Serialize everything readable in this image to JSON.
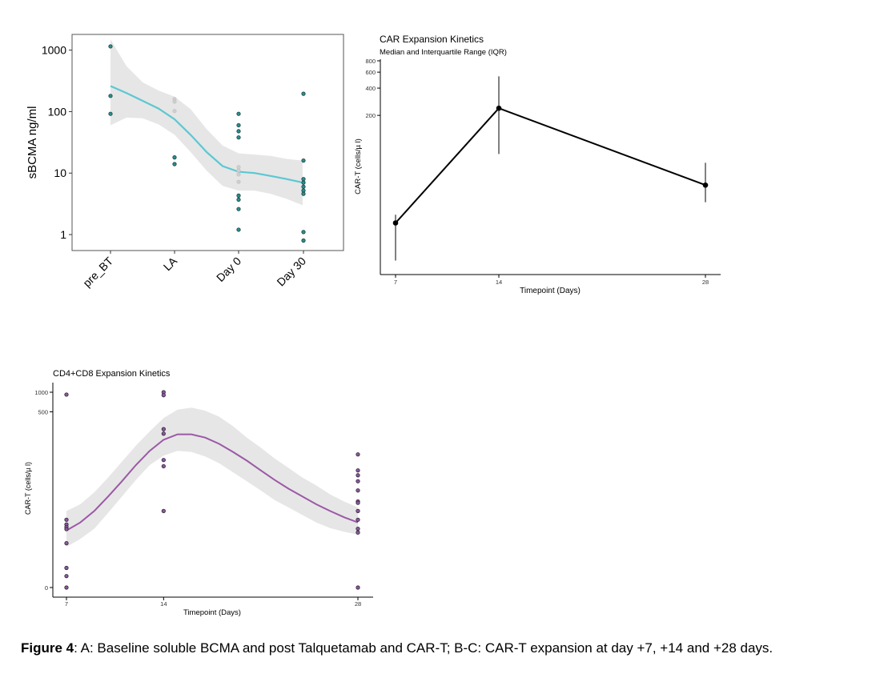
{
  "caption": {
    "label": "Figure 4",
    "text": ": A: Baseline soluble BCMA and post Talquetamab and CAR-T; B-C: CAR-T expansion at day +7, +14 and +28 days."
  },
  "colors": {
    "teal_line": "#5bc8d2",
    "purple_line": "#9b59a6",
    "ribbon": "#e6e6e6",
    "teal_point": "#2a8f8f",
    "purple_point": "#8a5a9a"
  },
  "chart_data": [
    {
      "id": "A",
      "type": "scatter",
      "title": "",
      "xlabel": "",
      "ylabel": "sBCMA ng/ml",
      "y_scale": "log",
      "ylim": [
        0.55,
        1800
      ],
      "categories": [
        "pre_BT",
        "LA",
        "Day 0",
        "Day 30"
      ],
      "y_ticks": [
        1,
        10,
        100,
        1000
      ],
      "y_tick_labels": [
        "1",
        "10",
        "100",
        "1000"
      ],
      "points_dark": [
        {
          "x": "pre_BT",
          "y": 1150
        },
        {
          "x": "pre_BT",
          "y": 180
        },
        {
          "x": "pre_BT",
          "y": 92
        },
        {
          "x": "LA",
          "y": 18
        },
        {
          "x": "LA",
          "y": 14
        },
        {
          "x": "Day 0",
          "y": 92
        },
        {
          "x": "Day 0",
          "y": 60
        },
        {
          "x": "Day 0",
          "y": 48
        },
        {
          "x": "Day 0",
          "y": 38
        },
        {
          "x": "Day 0",
          "y": 4.3
        },
        {
          "x": "Day 0",
          "y": 3.7
        },
        {
          "x": "Day 0",
          "y": 2.6
        },
        {
          "x": "Day 0",
          "y": 1.2
        },
        {
          "x": "Day 30",
          "y": 195
        },
        {
          "x": "Day 30",
          "y": 16
        },
        {
          "x": "Day 30",
          "y": 8
        },
        {
          "x": "Day 30",
          "y": 7
        },
        {
          "x": "Day 30",
          "y": 6
        },
        {
          "x": "Day 30",
          "y": 5.2
        },
        {
          "x": "Day 30",
          "y": 4.6
        },
        {
          "x": "Day 30",
          "y": 1.1
        },
        {
          "x": "Day 30",
          "y": 0.8
        }
      ],
      "points_light": [
        {
          "x": "LA",
          "y": 160
        },
        {
          "x": "LA",
          "y": 145
        },
        {
          "x": "LA",
          "y": 102
        },
        {
          "x": "Day 0",
          "y": 12.5
        },
        {
          "x": "Day 0",
          "y": 11
        },
        {
          "x": "Day 0",
          "y": 9.5
        },
        {
          "x": "Day 0",
          "y": 7.2
        }
      ],
      "fit": {
        "x": [
          0,
          0.25,
          0.5,
          0.75,
          1,
          1.25,
          1.5,
          1.75,
          2,
          2.25,
          2.5,
          2.75,
          3
        ],
        "y": [
          260,
          200,
          150,
          112,
          75,
          42,
          22,
          13,
          10.5,
          10,
          9,
          8,
          7
        ],
        "lower": [
          60,
          80,
          78,
          62,
          42,
          22,
          11,
          6.2,
          5.2,
          5.2,
          4.6,
          3.8,
          3.0
        ],
        "upper": [
          1500,
          550,
          300,
          220,
          175,
          110,
          52,
          28,
          21,
          20,
          19,
          17,
          16
        ]
      }
    },
    {
      "id": "B",
      "type": "line",
      "title": "CAR Expansion Kinetics",
      "subtitle": "Median and Interquartile Range (IQR)",
      "xlabel": "Timepoint (Days)",
      "ylabel": "CAR-T (cells/µ l)",
      "y_scale": "log",
      "ylim": [
        3.5,
        800
      ],
      "x": [
        7,
        14,
        28
      ],
      "y_ticks": [
        200,
        400,
        600,
        800
      ],
      "y_tick_labels": [
        "200",
        "400",
        "600",
        "800"
      ],
      "series": [
        {
          "median": [
            13,
            240,
            34
          ],
          "q1": [
            5,
            75,
            22
          ],
          "q3": [
            16,
            540,
            60
          ]
        }
      ]
    },
    {
      "id": "C",
      "type": "scatter",
      "title": "CD4+CD8 Expansion Kinetics",
      "xlabel": "Timepoint (Days)",
      "ylabel": "CAR-T (cells/µ l)",
      "y_scale": "log1p",
      "ylim": [
        0,
        1000
      ],
      "x_ticks": [
        7,
        14,
        28
      ],
      "y_ticks": [
        0,
        500,
        1000
      ],
      "y_tick_labels": [
        "0",
        "500",
        "1000"
      ],
      "points": [
        {
          "x": 7,
          "y": 920
        },
        {
          "x": 7,
          "y": 10
        },
        {
          "x": 7,
          "y": 8.3
        },
        {
          "x": 7,
          "y": 7.5
        },
        {
          "x": 7,
          "y": 6.9
        },
        {
          "x": 7,
          "y": 3.8
        },
        {
          "x": 7,
          "y": 1.0
        },
        {
          "x": 7,
          "y": 0.5
        },
        {
          "x": 7,
          "y": 0.0
        },
        {
          "x": 14,
          "y": 1000
        },
        {
          "x": 14,
          "y": 900
        },
        {
          "x": 14,
          "y": 270
        },
        {
          "x": 14,
          "y": 230
        },
        {
          "x": 14,
          "y": 90
        },
        {
          "x": 14,
          "y": 72
        },
        {
          "x": 14,
          "y": 14
        },
        {
          "x": 28,
          "y": 110
        },
        {
          "x": 28,
          "y": 62
        },
        {
          "x": 28,
          "y": 52
        },
        {
          "x": 28,
          "y": 42
        },
        {
          "x": 28,
          "y": 30
        },
        {
          "x": 28,
          "y": 20
        },
        {
          "x": 28,
          "y": 19
        },
        {
          "x": 28,
          "y": 14
        },
        {
          "x": 28,
          "y": 10
        },
        {
          "x": 28,
          "y": 7
        },
        {
          "x": 28,
          "y": 6
        },
        {
          "x": 28,
          "y": 0.0
        }
      ],
      "fit": {
        "x": [
          7,
          8,
          9,
          10,
          11,
          12,
          13,
          14,
          15,
          16,
          17,
          18,
          19,
          20,
          21,
          22,
          23,
          24,
          25,
          26,
          27,
          28
        ],
        "y": [
          6.5,
          9,
          14,
          24,
          42,
          75,
          125,
          185,
          225,
          225,
          200,
          160,
          120,
          88,
          62,
          44,
          32,
          24,
          18,
          14,
          11,
          9
        ],
        "lower": [
          3.2,
          4.6,
          7,
          13,
          24,
          44,
          75,
          105,
          125,
          120,
          102,
          80,
          58,
          42,
          30,
          21,
          16,
          12,
          9,
          7.2,
          6.2,
          5.5
        ],
        "upper": [
          14,
          18,
          28,
          48,
          85,
          150,
          250,
          400,
          540,
          580,
          520,
          420,
          300,
          200,
          140,
          95,
          68,
          48,
          36,
          26,
          20,
          16
        ]
      }
    }
  ]
}
